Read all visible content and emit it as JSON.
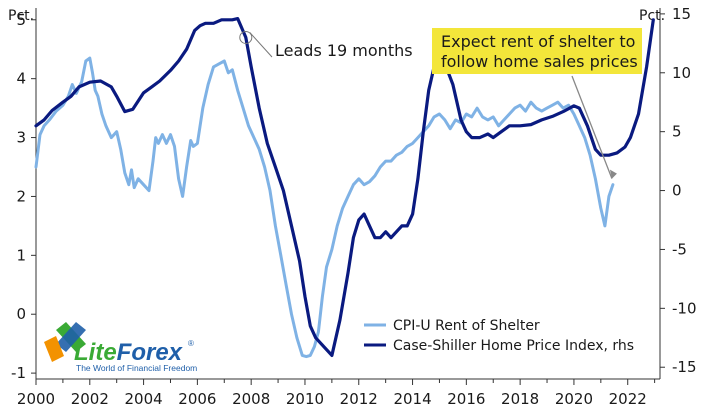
{
  "chart_data": {
    "type": "line",
    "title": "",
    "left_axis": {
      "unit": "Pct.",
      "range": [
        -1.1,
        5.2
      ],
      "ticks": [
        "5",
        "4",
        "3",
        "2",
        "1",
        "0",
        "-1"
      ],
      "tick_values": [
        5,
        4,
        3,
        2,
        1,
        0,
        -1
      ]
    },
    "right_axis": {
      "unit": "Pct.",
      "range": [
        -16,
        15.5
      ],
      "ticks": [
        "15",
        "10",
        "5",
        "0",
        "-5",
        "-10",
        "-15"
      ],
      "tick_values": [
        15,
        10,
        5,
        0,
        -5,
        -10,
        -15
      ]
    },
    "x_axis": {
      "range": [
        2000,
        2023.2
      ],
      "ticks": [
        "2000",
        "2002",
        "2004",
        "2006",
        "2008",
        "2010",
        "2012",
        "2014",
        "2016",
        "2018",
        "2020",
        "2022"
      ],
      "tick_values": [
        2000,
        2002,
        2004,
        2006,
        2008,
        2010,
        2012,
        2014,
        2016,
        2018,
        2020,
        2022
      ]
    },
    "grid": false,
    "legend_position": "bottom-right",
    "series": [
      {
        "name": "CPI-U Rent of Shelter",
        "axis": "left",
        "color": "#7fb2e5",
        "x": [
          2000.0,
          2000.15,
          2000.3,
          2000.5,
          2000.75,
          2001.0,
          2001.2,
          2001.35,
          2001.5,
          2001.7,
          2001.85,
          2002.0,
          2002.1,
          2002.2,
          2002.3,
          2002.45,
          2002.6,
          2002.8,
          2003.0,
          2003.15,
          2003.3,
          2003.45,
          2003.55,
          2003.65,
          2003.8,
          2004.0,
          2004.2,
          2004.35,
          2004.45,
          2004.55,
          2004.7,
          2004.85,
          2005.0,
          2005.15,
          2005.3,
          2005.45,
          2005.6,
          2005.75,
          2005.85,
          2006.0,
          2006.2,
          2006.4,
          2006.6,
          2006.8,
          2007.0,
          2007.15,
          2007.3,
          2007.5,
          2007.7,
          2007.9,
          2008.1,
          2008.3,
          2008.5,
          2008.7,
          2008.9,
          2009.1,
          2009.3,
          2009.5,
          2009.7,
          2009.9,
          2010.05,
          2010.2,
          2010.35,
          2010.5,
          2010.65,
          2010.8,
          2011.0,
          2011.2,
          2011.4,
          2011.6,
          2011.8,
          2012.0,
          2012.2,
          2012.4,
          2012.6,
          2012.8,
          2013.0,
          2013.2,
          2013.4,
          2013.6,
          2013.8,
          2014.0,
          2014.2,
          2014.4,
          2014.6,
          2014.8,
          2015.0,
          2015.2,
          2015.4,
          2015.6,
          2015.8,
          2016.0,
          2016.2,
          2016.4,
          2016.6,
          2016.8,
          2017.0,
          2017.2,
          2017.4,
          2017.6,
          2017.8,
          2018.0,
          2018.2,
          2018.4,
          2018.6,
          2018.8,
          2019.0,
          2019.2,
          2019.4,
          2019.6,
          2019.8,
          2020.0,
          2020.2,
          2020.4,
          2020.6,
          2020.8,
          2021.0,
          2021.15,
          2021.3,
          2021.45
        ],
        "y": [
          2.5,
          3.05,
          3.2,
          3.3,
          3.45,
          3.55,
          3.7,
          3.9,
          3.75,
          3.95,
          4.3,
          4.35,
          4.1,
          3.8,
          3.7,
          3.4,
          3.2,
          3.0,
          3.1,
          2.8,
          2.4,
          2.2,
          2.45,
          2.15,
          2.3,
          2.2,
          2.1,
          2.6,
          3.0,
          2.9,
          3.05,
          2.9,
          3.05,
          2.85,
          2.3,
          2.0,
          2.5,
          2.95,
          2.85,
          2.9,
          3.5,
          3.9,
          4.2,
          4.25,
          4.3,
          4.1,
          4.15,
          3.8,
          3.5,
          3.2,
          3.0,
          2.8,
          2.5,
          2.1,
          1.5,
          1.0,
          0.5,
          0.0,
          -0.4,
          -0.7,
          -0.72,
          -0.7,
          -0.55,
          -0.3,
          0.3,
          0.8,
          1.1,
          1.5,
          1.8,
          2.0,
          2.2,
          2.3,
          2.2,
          2.25,
          2.35,
          2.5,
          2.6,
          2.6,
          2.7,
          2.75,
          2.85,
          2.9,
          3.0,
          3.1,
          3.2,
          3.35,
          3.4,
          3.3,
          3.15,
          3.3,
          3.25,
          3.4,
          3.35,
          3.5,
          3.35,
          3.3,
          3.35,
          3.2,
          3.3,
          3.4,
          3.5,
          3.55,
          3.45,
          3.6,
          3.5,
          3.45,
          3.5,
          3.55,
          3.6,
          3.5,
          3.55,
          3.4,
          3.2,
          3.0,
          2.7,
          2.3,
          1.8,
          1.5,
          2.0,
          2.2
        ]
      },
      {
        "name": "Case-Shiller Home Price Index, rhs",
        "axis": "right",
        "color": "#0a1a80",
        "x": [
          2000.0,
          2000.3,
          2000.6,
          2001.0,
          2001.3,
          2001.6,
          2002.0,
          2002.4,
          2002.8,
          2003.0,
          2003.3,
          2003.6,
          2004.0,
          2004.3,
          2004.6,
          2005.0,
          2005.3,
          2005.6,
          2005.9,
          2006.1,
          2006.3,
          2006.6,
          2006.9,
          2007.1,
          2007.3,
          2007.5,
          2007.8,
          2008.0,
          2008.3,
          2008.6,
          2008.9,
          2009.2,
          2009.5,
          2009.8,
          2010.0,
          2010.2,
          2010.4,
          2010.6,
          2010.8,
          2011.0,
          2011.3,
          2011.6,
          2011.8,
          2012.0,
          2012.2,
          2012.4,
          2012.6,
          2012.8,
          2013.0,
          2013.2,
          2013.4,
          2013.6,
          2013.8,
          2014.0,
          2014.2,
          2014.4,
          2014.6,
          2014.8,
          2015.0,
          2015.2,
          2015.5,
          2015.8,
          2016.0,
          2016.2,
          2016.5,
          2016.8,
          2017.0,
          2017.3,
          2017.6,
          2018.0,
          2018.4,
          2018.8,
          2019.2,
          2019.6,
          2020.0,
          2020.2,
          2020.5,
          2020.8,
          2021.0,
          2021.3,
          2021.6,
          2021.9,
          2022.1,
          2022.4,
          2022.7,
          2022.95
        ],
        "y": [
          5.5,
          6.0,
          6.8,
          7.5,
          8.0,
          8.8,
          9.2,
          9.3,
          8.8,
          8.0,
          6.7,
          6.9,
          8.3,
          8.8,
          9.3,
          10.2,
          11.0,
          12.0,
          13.6,
          14.0,
          14.2,
          14.2,
          14.5,
          14.5,
          14.5,
          14.6,
          13.0,
          10.5,
          7.0,
          4.0,
          2.0,
          0.0,
          -3.0,
          -6.0,
          -9.0,
          -11.5,
          -12.5,
          -13.0,
          -13.5,
          -14.0,
          -11.0,
          -7.0,
          -4.0,
          -2.5,
          -2.0,
          -3.0,
          -4.0,
          -4.0,
          -3.5,
          -4.0,
          -3.5,
          -3.0,
          -3.0,
          -2.0,
          1.0,
          5.0,
          8.5,
          10.5,
          11.3,
          10.8,
          9.0,
          6.0,
          5.0,
          4.5,
          4.5,
          4.8,
          4.5,
          5.0,
          5.5,
          5.5,
          5.6,
          6.0,
          6.3,
          6.7,
          7.2,
          7.0,
          5.5,
          3.5,
          3.0,
          3.0,
          3.2,
          3.7,
          4.5,
          6.5,
          10.5,
          14.5
        ]
      }
    ],
    "annotations": [
      {
        "text": "Leads 19 months",
        "x": 2007.8,
        "y_left": 4.25,
        "y_right": 13.0
      },
      {
        "text": [
          "Expect rent of shelter to",
          "follow home sales prices"
        ],
        "highlight": "#f3e63a",
        "arrow_to_year": 2021.45,
        "arrow_to_left_value": 2.2
      }
    ]
  },
  "logo": {
    "name": "LiteForex",
    "lite": "Lite",
    "forex": "Forex",
    "registered": "®",
    "tagline": "The World of Financial Freedom",
    "colors": {
      "green": "#3aaa35",
      "orange": "#f39200",
      "blue": "#1f5fa9"
    }
  }
}
